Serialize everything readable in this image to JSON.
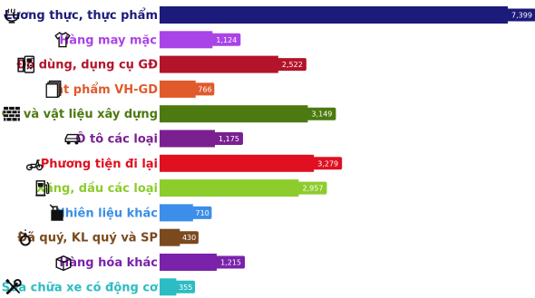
{
  "chart_data": {
    "type": "bar",
    "orientation": "horizontal",
    "grid": false,
    "categories": [
      "Lương thực, thực phẩm",
      "Hàng may mặc",
      "Đồ dùng, dụng cụ GĐ",
      "Vật phẩm VH-GD",
      "Gỗ và vật liệu xây dựng",
      "Ô tô các loại",
      "Phương tiện đi lại",
      "Xăng, dầu các loại",
      "Nhiên liệu khác",
      "Đá quý, KL quý và SP",
      "Hàng hóa khác",
      "Sửa chữa xe có động cơ"
    ],
    "values": [
      7399,
      1124,
      2522,
      766,
      3149,
      1175,
      3279,
      2957,
      710,
      430,
      1215,
      355
    ],
    "value_labels": [
      "7,399",
      "1,124",
      "2,522",
      "766",
      "3,149",
      "1,175",
      "3,279",
      "2,957",
      "710",
      "430",
      "1,215",
      "355"
    ],
    "colors": [
      "#1c1a7a",
      "#a944e8",
      "#b3142a",
      "#e05a2c",
      "#4c7a10",
      "#7a2090",
      "#e01020",
      "#8ccc2c",
      "#3c8ee8",
      "#7a4a1e",
      "#7a22aa",
      "#2cbcc4"
    ],
    "icons": [
      "bowl-icon",
      "shirt-icon",
      "appliance-icon",
      "books-icon",
      "brick-wall-icon",
      "car-icon",
      "scooter-icon",
      "fuel-pump-icon",
      "fuel-can-icon",
      "diamond-ring-icon",
      "box-icon",
      "wrench-icon"
    ],
    "xlim": [
      0,
      7399
    ],
    "title": "",
    "xlabel": "",
    "ylabel": ""
  }
}
